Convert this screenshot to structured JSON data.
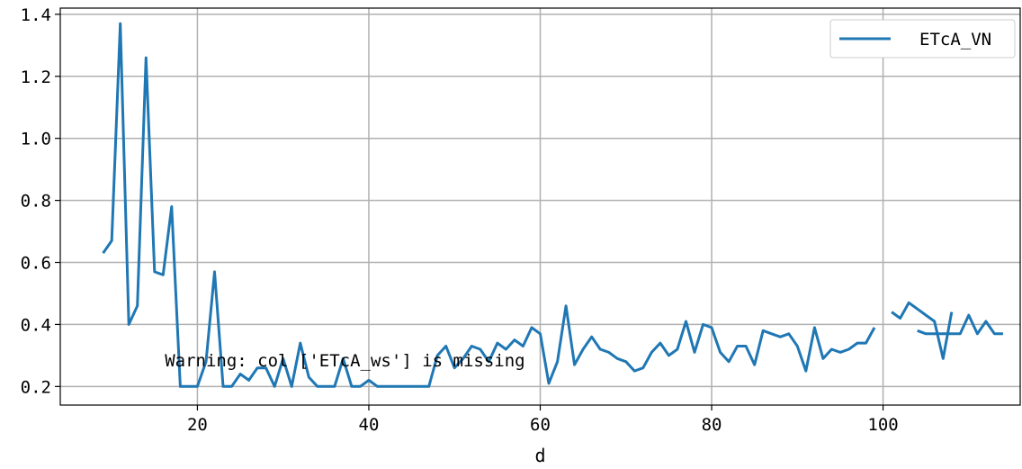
{
  "chart_data": {
    "type": "line",
    "title": "",
    "xlabel": "d",
    "ylabel": "",
    "xlim": [
      4,
      116
    ],
    "ylim": [
      0.14,
      1.42
    ],
    "xticks": [
      20,
      40,
      60,
      80,
      100
    ],
    "yticks": [
      0.2,
      0.4,
      0.6,
      0.8,
      1.0,
      1.2,
      1.4
    ],
    "xtick_labels": [
      "20",
      "40",
      "60",
      "80",
      "100"
    ],
    "ytick_labels": [
      "0.2",
      "0.4",
      "0.6",
      "0.8",
      "1.0",
      "1.2",
      "1.4"
    ],
    "grid": true,
    "legend_position": "top-right",
    "annotation": "Warning: col ['ETcA_ws'] is missing",
    "series": [
      {
        "name": "ETcA_VN",
        "color": "#1f77b4",
        "x": [
          9,
          10,
          11,
          12,
          13,
          14,
          15,
          16,
          17,
          18,
          19,
          20,
          21,
          22,
          23,
          24,
          25,
          26,
          27,
          28,
          29,
          30,
          31,
          32,
          33,
          34,
          35,
          36,
          37,
          38,
          39,
          40,
          41,
          42,
          43,
          44,
          45,
          46,
          47,
          48,
          49,
          50,
          51,
          52,
          53,
          54,
          55,
          56,
          57,
          58,
          59,
          60,
          61,
          62,
          63,
          64,
          65,
          66,
          67,
          68,
          69,
          70,
          71,
          72,
          73,
          74,
          75,
          76,
          77,
          78,
          79,
          80,
          81,
          82,
          83,
          84,
          85,
          86,
          87,
          88,
          89,
          90,
          91,
          92,
          93,
          94,
          95,
          96,
          97,
          98,
          99,
          100,
          101,
          102,
          103,
          104,
          105,
          106,
          107,
          108,
          109,
          110,
          111,
          112,
          113,
          114
        ],
        "y": [
          0.63,
          0.67,
          1.37,
          0.4,
          0.46,
          1.26,
          0.57,
          0.56,
          0.78,
          0.2,
          0.2,
          0.2,
          0.28,
          0.57,
          0.2,
          0.2,
          0.24,
          0.22,
          0.26,
          0.26,
          0.2,
          0.29,
          0.2,
          0.34,
          0.23,
          0.2,
          0.2,
          0.2,
          0.29,
          0.2,
          0.2,
          0.22,
          0.2,
          0.2,
          0.2,
          0.2,
          0.2,
          0.2,
          0.2,
          0.3,
          0.33,
          0.26,
          0.29,
          0.33,
          0.32,
          0.28,
          0.34,
          0.32,
          0.35,
          0.33,
          0.39,
          0.37,
          0.21,
          0.28,
          0.46,
          0.27,
          0.32,
          0.36,
          0.32,
          0.31,
          0.29,
          0.28,
          0.25,
          0.26,
          0.31,
          0.34,
          0.3,
          0.32,
          0.41,
          0.31,
          0.4,
          0.39,
          0.31,
          0.28,
          0.33,
          0.33,
          0.27,
          0.38,
          0.37,
          0.36,
          0.37,
          0.33,
          0.25,
          0.39,
          0.29,
          0.32,
          0.31,
          0.32,
          0.34,
          0.34,
          0.39,
          null,
          0.44,
          0.42,
          0.47,
          0.45,
          0.43,
          0.41,
          0.29,
          0.44,
          null,
          null,
          null,
          null,
          null,
          null
        ],
        "x2": [
          104,
          105,
          106,
          107,
          108,
          109,
          110,
          111,
          112,
          113,
          114
        ],
        "y2": [
          0.38,
          0.37,
          0.37,
          0.37,
          0.37,
          0.37,
          0.43,
          0.37,
          0.41,
          0.37,
          0.37
        ]
      }
    ]
  }
}
